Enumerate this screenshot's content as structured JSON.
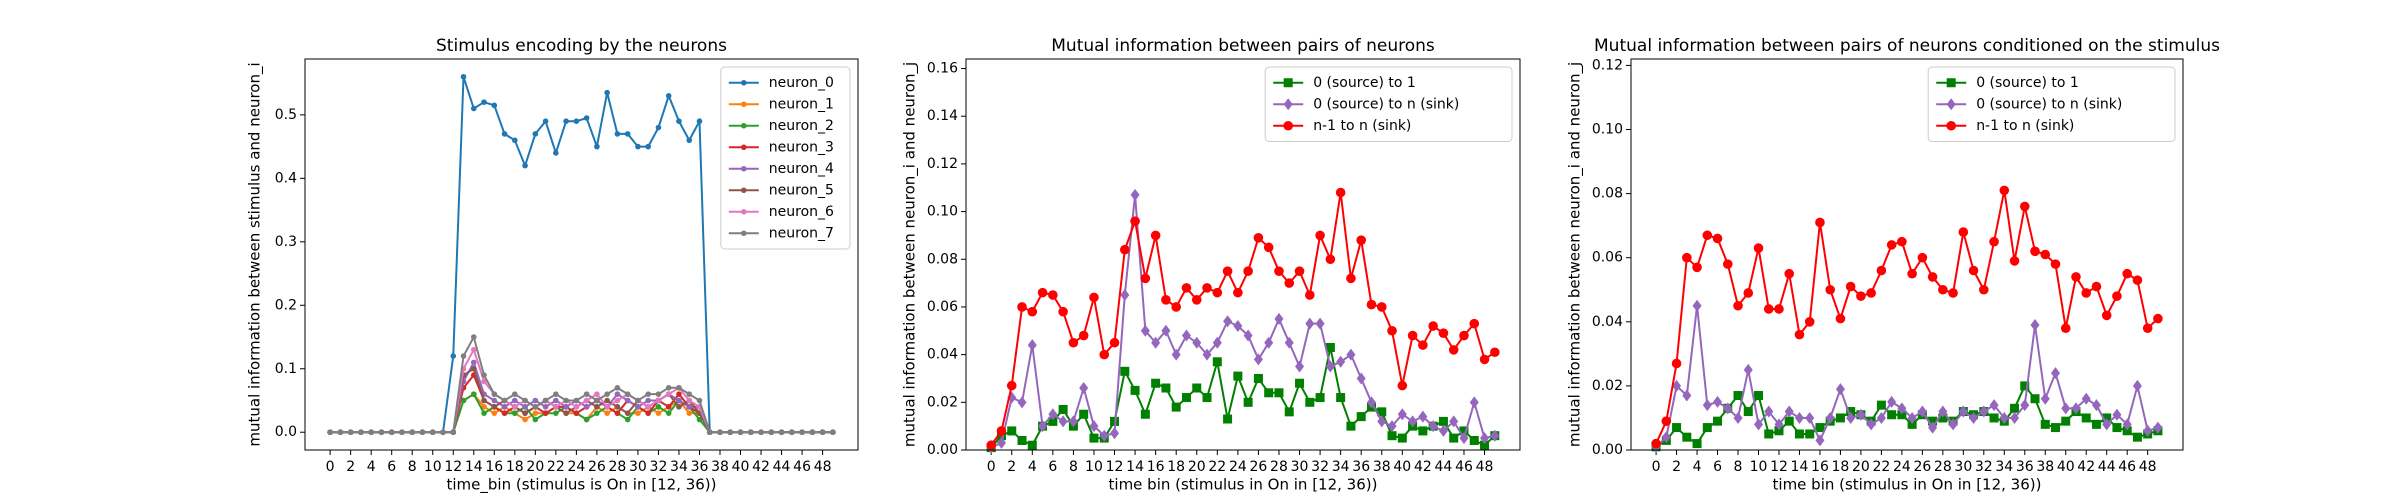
{
  "chart_data": [
    {
      "type": "line",
      "title": "Stimulus encoding by the neurons",
      "xlabel": "time_bin (stimulus is On in [12, 36))",
      "ylabel": "mutual information between stimulus and neuron_i",
      "x": [
        0,
        1,
        2,
        3,
        4,
        5,
        6,
        7,
        8,
        9,
        10,
        11,
        12,
        13,
        14,
        15,
        16,
        17,
        18,
        19,
        20,
        21,
        22,
        23,
        24,
        25,
        26,
        27,
        28,
        29,
        30,
        31,
        32,
        33,
        34,
        35,
        36,
        37,
        38,
        39,
        40,
        41,
        42,
        43,
        44,
        45,
        46,
        47,
        48,
        49
      ],
      "xlim": [
        -2.45,
        51.45
      ],
      "ylim": [
        -0.028,
        0.588
      ],
      "xticks": [
        0,
        2,
        4,
        6,
        8,
        10,
        12,
        14,
        16,
        18,
        20,
        22,
        24,
        26,
        28,
        30,
        32,
        34,
        36,
        38,
        40,
        42,
        44,
        46,
        48
      ],
      "yticks": [
        {
          "value": 0,
          "label": "0.0"
        },
        0.1,
        0.2,
        0.3,
        0.4,
        0.5
      ],
      "legend": "upper right",
      "series": [
        {
          "name": "neuron_0",
          "color": "#1f77b4",
          "marker": "point",
          "values": [
            0,
            0,
            0,
            0,
            0,
            0,
            0,
            0,
            0,
            0,
            0,
            0,
            0.12,
            0.56,
            0.51,
            0.52,
            0.515,
            0.47,
            0.46,
            0.42,
            0.47,
            0.49,
            0.44,
            0.49,
            0.49,
            0.495,
            0.45,
            0.535,
            0.47,
            0.47,
            0.45,
            0.45,
            0.48,
            0.53,
            0.49,
            0.46,
            0.49,
            0,
            0,
            0,
            0,
            0,
            0,
            0,
            0,
            0,
            0,
            0,
            0,
            0
          ]
        },
        {
          "name": "neuron_1",
          "color": "#ff7f0e",
          "marker": "point",
          "values": [
            0,
            0,
            0,
            0,
            0,
            0,
            0,
            0,
            0,
            0,
            0,
            0,
            0,
            0.05,
            0.06,
            0.04,
            0.03,
            0.04,
            0.03,
            0.02,
            0.03,
            0.03,
            0.04,
            0.03,
            0.03,
            0.02,
            0.04,
            0.03,
            0.04,
            0.03,
            0.03,
            0.04,
            0.03,
            0.04,
            0.05,
            0.03,
            0.03,
            0,
            0,
            0,
            0,
            0,
            0,
            0,
            0,
            0,
            0,
            0,
            0,
            0
          ]
        },
        {
          "name": "neuron_2",
          "color": "#2ca02c",
          "marker": "point",
          "values": [
            0,
            0,
            0,
            0,
            0,
            0,
            0,
            0,
            0,
            0,
            0,
            0,
            0,
            0.05,
            0.06,
            0.03,
            0.04,
            0.03,
            0.03,
            0.04,
            0.02,
            0.03,
            0.03,
            0.04,
            0.03,
            0.02,
            0.03,
            0.04,
            0.03,
            0.02,
            0.04,
            0.03,
            0.04,
            0.03,
            0.05,
            0.04,
            0.02,
            0,
            0,
            0,
            0,
            0,
            0,
            0,
            0,
            0,
            0,
            0,
            0,
            0
          ]
        },
        {
          "name": "neuron_3",
          "color": "#d62728",
          "marker": "point",
          "values": [
            0,
            0,
            0,
            0,
            0,
            0,
            0,
            0,
            0,
            0,
            0,
            0,
            0,
            0.07,
            0.09,
            0.05,
            0.04,
            0.03,
            0.04,
            0.03,
            0.04,
            0.03,
            0.04,
            0.04,
            0.03,
            0.04,
            0.05,
            0.04,
            0.03,
            0.05,
            0.04,
            0.03,
            0.05,
            0.04,
            0.06,
            0.04,
            0.03,
            0,
            0,
            0,
            0,
            0,
            0,
            0,
            0,
            0,
            0,
            0,
            0,
            0
          ]
        },
        {
          "name": "neuron_4",
          "color": "#9467bd",
          "marker": "point",
          "values": [
            0,
            0,
            0,
            0,
            0,
            0,
            0,
            0,
            0,
            0,
            0,
            0,
            0,
            0.08,
            0.11,
            0.06,
            0.05,
            0.04,
            0.05,
            0.04,
            0.05,
            0.04,
            0.05,
            0.04,
            0.05,
            0.04,
            0.05,
            0.04,
            0.06,
            0.05,
            0.04,
            0.05,
            0.05,
            0.06,
            0.05,
            0.04,
            0.04,
            0,
            0,
            0,
            0,
            0,
            0,
            0,
            0,
            0,
            0,
            0,
            0,
            0
          ]
        },
        {
          "name": "neuron_5",
          "color": "#8c564b",
          "marker": "point",
          "values": [
            0,
            0,
            0,
            0,
            0,
            0,
            0,
            0,
            0,
            0,
            0,
            0,
            0,
            0.09,
            0.1,
            0.05,
            0.04,
            0.05,
            0.04,
            0.03,
            0.04,
            0.05,
            0.04,
            0.03,
            0.04,
            0.05,
            0.04,
            0.05,
            0.04,
            0.03,
            0.05,
            0.04,
            0.05,
            0.06,
            0.04,
            0.05,
            0.03,
            0,
            0,
            0,
            0,
            0,
            0,
            0,
            0,
            0,
            0,
            0,
            0,
            0
          ]
        },
        {
          "name": "neuron_6",
          "color": "#e377c2",
          "marker": "point",
          "values": [
            0,
            0,
            0,
            0,
            0,
            0,
            0,
            0,
            0,
            0,
            0,
            0,
            0,
            0.1,
            0.13,
            0.08,
            0.06,
            0.05,
            0.04,
            0.05,
            0.04,
            0.05,
            0.04,
            0.05,
            0.04,
            0.05,
            0.06,
            0.04,
            0.05,
            0.06,
            0.05,
            0.04,
            0.05,
            0.06,
            0.07,
            0.05,
            0.04,
            0,
            0,
            0,
            0,
            0,
            0,
            0,
            0,
            0,
            0,
            0,
            0,
            0
          ]
        },
        {
          "name": "neuron_7",
          "color": "#7f7f7f",
          "marker": "point",
          "values": [
            0,
            0,
            0,
            0,
            0,
            0,
            0,
            0,
            0,
            0,
            0,
            0,
            0,
            0.12,
            0.15,
            0.09,
            0.06,
            0.05,
            0.06,
            0.05,
            0.04,
            0.05,
            0.06,
            0.05,
            0.05,
            0.06,
            0.05,
            0.06,
            0.07,
            0.06,
            0.05,
            0.06,
            0.06,
            0.07,
            0.07,
            0.06,
            0.05,
            0,
            0,
            0,
            0,
            0,
            0,
            0,
            0,
            0,
            0,
            0,
            0,
            0
          ]
        }
      ]
    },
    {
      "type": "line",
      "title": "Mutual information between pairs of neurons",
      "xlabel": "time bin (stimulus in On in [12, 36))",
      "ylabel": "mutual information between neuron_i and neuron_j",
      "x": [
        0,
        1,
        2,
        3,
        4,
        5,
        6,
        7,
        8,
        9,
        10,
        11,
        12,
        13,
        14,
        15,
        16,
        17,
        18,
        19,
        20,
        21,
        22,
        23,
        24,
        25,
        26,
        27,
        28,
        29,
        30,
        31,
        32,
        33,
        34,
        35,
        36,
        37,
        38,
        39,
        40,
        41,
        42,
        43,
        44,
        45,
        46,
        47,
        48,
        49
      ],
      "xlim": [
        -2.45,
        51.45
      ],
      "ylim": [
        0,
        0.164
      ],
      "xticks": [
        0,
        2,
        4,
        6,
        8,
        10,
        12,
        14,
        16,
        18,
        20,
        22,
        24,
        26,
        28,
        30,
        32,
        34,
        36,
        38,
        40,
        42,
        44,
        46,
        48
      ],
      "yticks": [
        {
          "value": 0,
          "label": "0.00"
        },
        0.02,
        0.04,
        0.06,
        0.08,
        {
          "value": 0.1,
          "label": "0.10"
        },
        0.12,
        0.14,
        0.16
      ],
      "legend": "upper right",
      "series": [
        {
          "name": "0 (source) to 1",
          "color": "#008000",
          "marker": "square",
          "values": [
            0.001,
            0.006,
            0.008,
            0.004,
            0.002,
            0.01,
            0.012,
            0.017,
            0.01,
            0.015,
            0.005,
            0.005,
            0.012,
            0.033,
            0.025,
            0.015,
            0.028,
            0.026,
            0.018,
            0.022,
            0.026,
            0.022,
            0.037,
            0.013,
            0.031,
            0.02,
            0.03,
            0.024,
            0.024,
            0.016,
            0.028,
            0.02,
            0.022,
            0.043,
            0.022,
            0.01,
            0.014,
            0.018,
            0.016,
            0.006,
            0.005,
            0.01,
            0.008,
            0.01,
            0.012,
            0.005,
            0.008,
            0.004,
            0.002,
            0.006
          ]
        },
        {
          "name": "0 (source) to n (sink)",
          "color": "#9467bd",
          "marker": "diamond",
          "values": [
            0.001,
            0.003,
            0.022,
            0.02,
            0.044,
            0.01,
            0.015,
            0.012,
            0.012,
            0.026,
            0.01,
            0.006,
            0.007,
            0.065,
            0.107,
            0.05,
            0.045,
            0.05,
            0.04,
            0.048,
            0.045,
            0.04,
            0.045,
            0.054,
            0.052,
            0.048,
            0.038,
            0.045,
            0.055,
            0.045,
            0.035,
            0.053,
            0.053,
            0.035,
            0.037,
            0.04,
            0.03,
            0.02,
            0.012,
            0.01,
            0.015,
            0.012,
            0.014,
            0.01,
            0.008,
            0.012,
            0.005,
            0.02,
            0.005,
            0.006
          ]
        },
        {
          "name": "n-1 to n (sink)",
          "color": "#ff0000",
          "marker": "circle",
          "values": [
            0.002,
            0.008,
            0.027,
            0.06,
            0.058,
            0.066,
            0.065,
            0.058,
            0.045,
            0.048,
            0.064,
            0.04,
            0.045,
            0.084,
            0.096,
            0.072,
            0.09,
            0.063,
            0.06,
            0.068,
            0.063,
            0.068,
            0.066,
            0.075,
            0.066,
            0.075,
            0.089,
            0.085,
            0.075,
            0.07,
            0.075,
            0.065,
            0.09,
            0.08,
            0.108,
            0.072,
            0.088,
            0.061,
            0.06,
            0.05,
            0.027,
            0.048,
            0.044,
            0.052,
            0.049,
            0.042,
            0.048,
            0.053,
            0.038,
            0.041
          ]
        }
      ]
    },
    {
      "type": "line",
      "title": "Mutual information between pairs of neurons conditioned on the stimulus",
      "xlabel": "time bin (stimulus in On in [12, 36))",
      "ylabel": "mutual information between neuron_i and neuron_j",
      "x": [
        0,
        1,
        2,
        3,
        4,
        5,
        6,
        7,
        8,
        9,
        10,
        11,
        12,
        13,
        14,
        15,
        16,
        17,
        18,
        19,
        20,
        21,
        22,
        23,
        24,
        25,
        26,
        27,
        28,
        29,
        30,
        31,
        32,
        33,
        34,
        35,
        36,
        37,
        38,
        39,
        40,
        41,
        42,
        43,
        44,
        45,
        46,
        47,
        48,
        49
      ],
      "xlim": [
        -2.45,
        51.45
      ],
      "ylim": [
        0,
        0.122
      ],
      "xticks": [
        0,
        2,
        4,
        6,
        8,
        10,
        12,
        14,
        16,
        18,
        20,
        22,
        24,
        26,
        28,
        30,
        32,
        34,
        36,
        38,
        40,
        42,
        44,
        46,
        48
      ],
      "yticks": [
        {
          "value": 0,
          "label": "0.00"
        },
        0.02,
        0.04,
        0.06,
        0.08,
        {
          "value": 0.1,
          "label": "0.10"
        },
        0.12
      ],
      "legend": "upper right",
      "series": [
        {
          "name": "0 (source) to 1",
          "color": "#008000",
          "marker": "square",
          "values": [
            0.001,
            0.003,
            0.007,
            0.004,
            0.002,
            0.007,
            0.009,
            0.013,
            0.017,
            0.012,
            0.017,
            0.005,
            0.006,
            0.009,
            0.005,
            0.005,
            0.007,
            0.009,
            0.01,
            0.012,
            0.011,
            0.009,
            0.014,
            0.011,
            0.011,
            0.008,
            0.011,
            0.009,
            0.01,
            0.009,
            0.012,
            0.011,
            0.012,
            0.01,
            0.009,
            0.013,
            0.02,
            0.016,
            0.008,
            0.007,
            0.009,
            0.012,
            0.01,
            0.008,
            0.01,
            0.007,
            0.006,
            0.004,
            0.005,
            0.006
          ]
        },
        {
          "name": "0 (source) to n (sink)",
          "color": "#9467bd",
          "marker": "diamond",
          "values": [
            0.001,
            0.004,
            0.02,
            0.017,
            0.045,
            0.014,
            0.015,
            0.013,
            0.01,
            0.025,
            0.008,
            0.012,
            0.008,
            0.012,
            0.01,
            0.01,
            0.003,
            0.01,
            0.019,
            0.01,
            0.011,
            0.008,
            0.01,
            0.015,
            0.013,
            0.01,
            0.012,
            0.007,
            0.012,
            0.008,
            0.012,
            0.01,
            0.012,
            0.014,
            0.01,
            0.01,
            0.014,
            0.039,
            0.016,
            0.024,
            0.013,
            0.013,
            0.016,
            0.014,
            0.008,
            0.011,
            0.008,
            0.02,
            0.006,
            0.007
          ]
        },
        {
          "name": "n-1 to n (sink)",
          "color": "#ff0000",
          "marker": "circle",
          "values": [
            0.002,
            0.009,
            0.027,
            0.06,
            0.057,
            0.067,
            0.066,
            0.058,
            0.045,
            0.049,
            0.063,
            0.044,
            0.044,
            0.055,
            0.036,
            0.04,
            0.071,
            0.05,
            0.041,
            0.051,
            0.048,
            0.049,
            0.056,
            0.064,
            0.065,
            0.055,
            0.06,
            0.054,
            0.05,
            0.049,
            0.068,
            0.056,
            0.05,
            0.065,
            0.081,
            0.059,
            0.076,
            0.062,
            0.061,
            0.058,
            0.038,
            0.054,
            0.049,
            0.051,
            0.042,
            0.048,
            0.055,
            0.053,
            0.038,
            0.041
          ]
        }
      ]
    }
  ]
}
